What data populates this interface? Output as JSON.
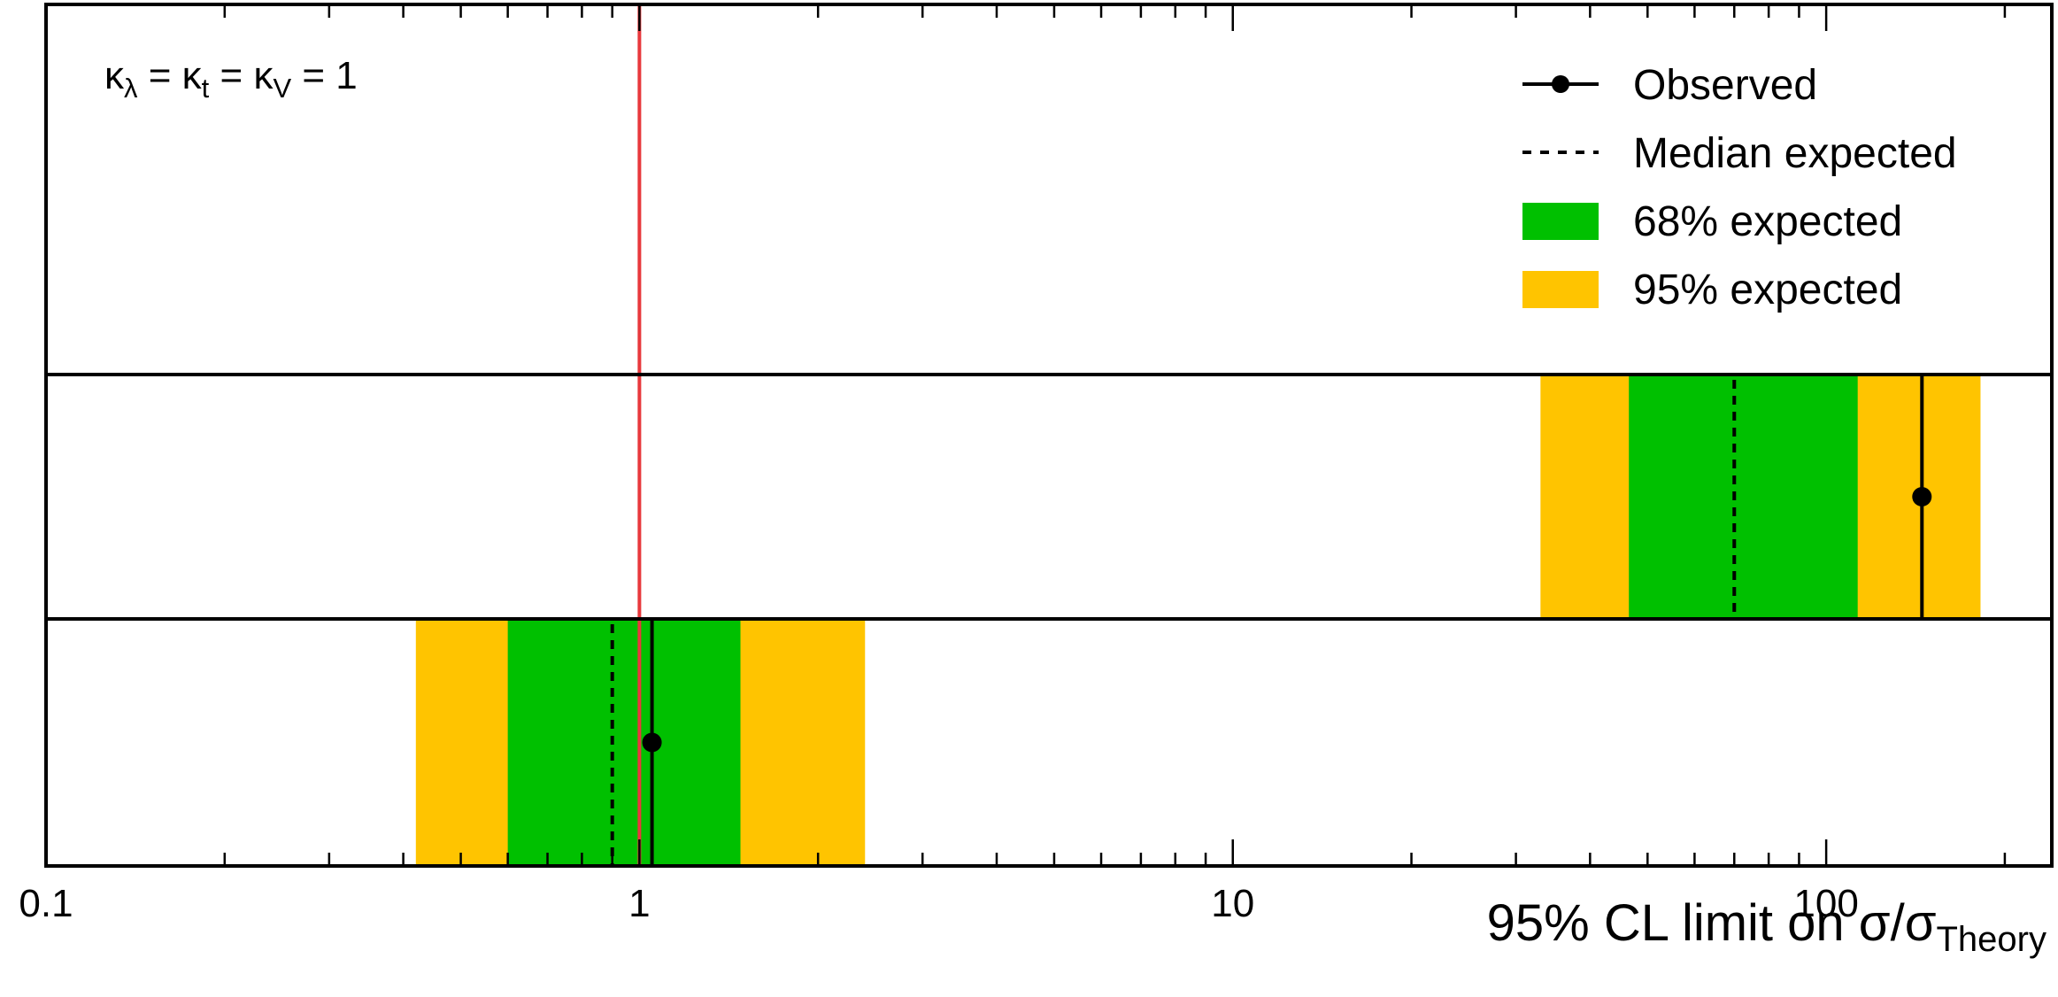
{
  "chart_data": {
    "type": "limit-bands",
    "xscale": "log",
    "xlim": [
      0.1,
      240
    ],
    "xlabel": "95% CL limit on σ/σ",
    "xlabel_sub": "Theory",
    "xticks": [
      "0.1",
      "1",
      "10",
      "100"
    ],
    "annotation": "κλ = κt = κV = 1",
    "annotation_parts": {
      "k1": "κ",
      "s1": "λ",
      "eq1": " = ",
      "k2": "κ",
      "s2": "t",
      "eq2": " = ",
      "k3": "κ",
      "s3": "V",
      "eq3": " = 1"
    },
    "reference_line": {
      "x": 1,
      "color": "#e8383d"
    },
    "legend": {
      "placement": "top-right",
      "items": [
        {
          "key": "observed",
          "label": "Observed"
        },
        {
          "key": "median",
          "label": "Median expected"
        },
        {
          "key": "band68",
          "label": "68% expected"
        },
        {
          "key": "band95",
          "label": "95% expected"
        }
      ]
    },
    "colors": {
      "band68": "#00c000",
      "band95": "#ffc400",
      "observed": "#000000",
      "median": "#000000"
    },
    "rows": [
      {
        "observed": 145,
        "expected": 70,
        "band68": [
          46.5,
          113
        ],
        "band95": [
          33,
          182
        ]
      },
      {
        "observed": 1.05,
        "expected": 0.9,
        "band68": [
          0.6,
          1.48
        ],
        "band95": [
          0.42,
          2.4
        ]
      }
    ]
  }
}
